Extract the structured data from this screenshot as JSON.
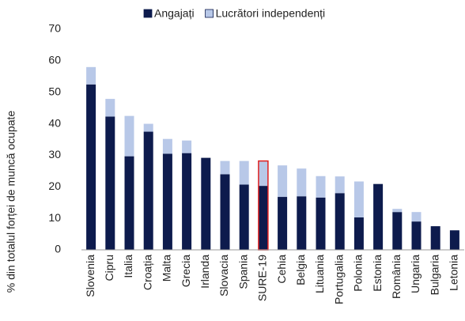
{
  "chart_data": {
    "type": "stacked_bar",
    "ylabel": "% din totalul forței de muncă ocupate",
    "categories": [
      "Slovenia",
      "Cipru",
      "Italia",
      "Croația",
      "Malta",
      "Grecia",
      "Irlanda",
      "Slovacia",
      "Spania",
      "SURE-19",
      "Cehia",
      "Belgia",
      "Lituania",
      "Portugalia",
      "Polonia",
      "Estonia",
      "România",
      "Ungaria",
      "Bulgaria",
      "Letonia"
    ],
    "series": [
      {
        "name": "Angajați",
        "color": "#0d1b4d",
        "values": [
          52.5,
          42.3,
          29.7,
          37.5,
          30.5,
          30.7,
          29.2,
          24.0,
          20.7,
          20.3,
          16.8,
          17.0,
          16.6,
          18.0,
          10.3,
          20.9,
          12.0,
          9.0,
          7.5,
          6.2
        ]
      },
      {
        "name": "Lucrători independenți",
        "color": "#b8c8e8",
        "values": [
          5.5,
          5.6,
          12.8,
          2.5,
          4.7,
          4.0,
          0,
          4.2,
          7.5,
          7.9,
          10.0,
          8.8,
          6.8,
          5.3,
          11.4,
          0,
          1.0,
          3.0,
          0,
          0
        ]
      }
    ],
    "highlight": 9,
    "highlight_color": "#e02020",
    "ylim": [
      0,
      70
    ],
    "yticks": [
      0,
      10,
      20,
      30,
      40,
      50,
      60,
      70
    ],
    "grid": false
  }
}
